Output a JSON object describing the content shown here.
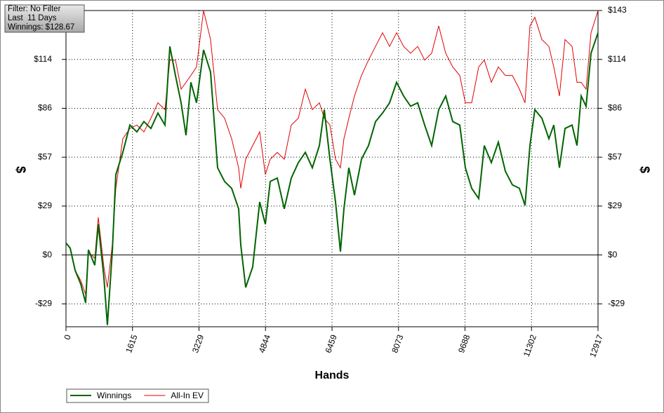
{
  "chart_data": {
    "type": "line",
    "info_box": [
      "Filter: No Filter",
      "Last  11 Days",
      "Winnings: $128.67"
    ],
    "x_label": "Hands",
    "y_label": "$",
    "y2_label": "$",
    "x": [
      0,
      102,
      222,
      358,
      477,
      545,
      699,
      784,
      920,
      1005,
      1125,
      1210,
      1380,
      1551,
      1721,
      1892,
      2062,
      2232,
      2403,
      2522,
      2658,
      2795,
      2914,
      3033,
      3169,
      3340,
      3510,
      3681,
      3851,
      4022,
      4192,
      4243,
      4363,
      4533,
      4703,
      4840,
      4959,
      5130,
      5300,
      5470,
      5641,
      5811,
      5981,
      6152,
      6271,
      6408,
      6544,
      6663,
      6748,
      6867,
      7004,
      7174,
      7345,
      7515,
      7685,
      7856,
      8026,
      8197,
      8367,
      8538,
      8708,
      8878,
      9049,
      9219,
      9390,
      9560,
      9696,
      9850,
      10020,
      10156,
      10327,
      10497,
      10667,
      10838,
      11008,
      11145,
      11264,
      11383,
      11554,
      11724,
      11843,
      11980,
      12116,
      12287,
      12406,
      12508,
      12627,
      12747,
      12917
    ],
    "series": [
      {
        "name": "Winnings",
        "color": "#006400",
        "values": [
          7,
          4,
          -9,
          -17,
          -28,
          3,
          -6,
          18,
          -13,
          -41,
          2,
          47,
          60,
          76,
          72,
          78,
          74,
          83,
          76,
          122,
          105,
          89,
          70,
          101,
          89,
          120,
          107,
          51,
          43,
          39,
          27,
          6,
          -19,
          -7,
          31,
          18,
          43,
          45,
          27,
          45,
          54,
          60,
          51,
          64,
          85,
          56,
          31,
          2,
          27,
          51,
          35,
          56,
          64,
          78,
          83,
          89,
          101,
          93,
          87,
          89,
          76,
          64,
          85,
          93,
          78,
          76,
          51,
          39,
          33,
          64,
          54,
          66,
          49,
          41,
          39,
          29,
          64,
          85,
          80,
          68,
          76,
          51,
          74,
          76,
          64,
          93,
          87,
          118,
          130
        ]
      },
      {
        "name": "All-In EV",
        "color": "#e00000",
        "values": [
          7,
          4,
          -9,
          -15,
          -23,
          2,
          -2,
          22,
          -7,
          -19,
          6,
          39,
          68,
          74,
          76,
          72,
          80,
          89,
          85,
          114,
          114,
          97,
          101,
          105,
          110,
          143,
          126,
          85,
          80,
          68,
          51,
          39,
          56,
          64,
          72,
          47,
          56,
          60,
          56,
          76,
          80,
          97,
          85,
          89,
          80,
          76,
          56,
          51,
          68,
          80,
          93,
          105,
          114,
          122,
          130,
          122,
          130,
          122,
          118,
          122,
          114,
          118,
          134,
          118,
          110,
          105,
          89,
          89,
          110,
          114,
          101,
          110,
          105,
          105,
          97,
          89,
          134,
          139,
          126,
          122,
          110,
          93,
          126,
          122,
          101,
          101,
          97,
          130,
          143
        ]
      }
    ],
    "xlim": [
      0,
      12917
    ],
    "xticks": [
      0,
      1615,
      3229,
      4844,
      6459,
      8073,
      9688,
      11302,
      12917
    ],
    "ylim": [
      -42,
      143
    ],
    "yticks": [
      {
        "value": -28.6,
        "label": "-$29"
      },
      {
        "value": 0,
        "label": "$0"
      },
      {
        "value": 28.6,
        "label": "$29"
      },
      {
        "value": 57.2,
        "label": "$57"
      },
      {
        "value": 85.8,
        "label": "$86"
      },
      {
        "value": 114.4,
        "label": "$114"
      }
    ],
    "y2lim": [
      -42,
      143
    ],
    "y2ticks": [
      {
        "value": -28.6,
        "label": "-$29"
      },
      {
        "value": 0,
        "label": "$0"
      },
      {
        "value": 28.6,
        "label": "$29"
      },
      {
        "value": 57.2,
        "label": "$57"
      },
      {
        "value": 85.8,
        "label": "$86"
      },
      {
        "value": 114.4,
        "label": "$114"
      },
      {
        "value": 143,
        "label": "$143"
      }
    ],
    "grid": true
  }
}
